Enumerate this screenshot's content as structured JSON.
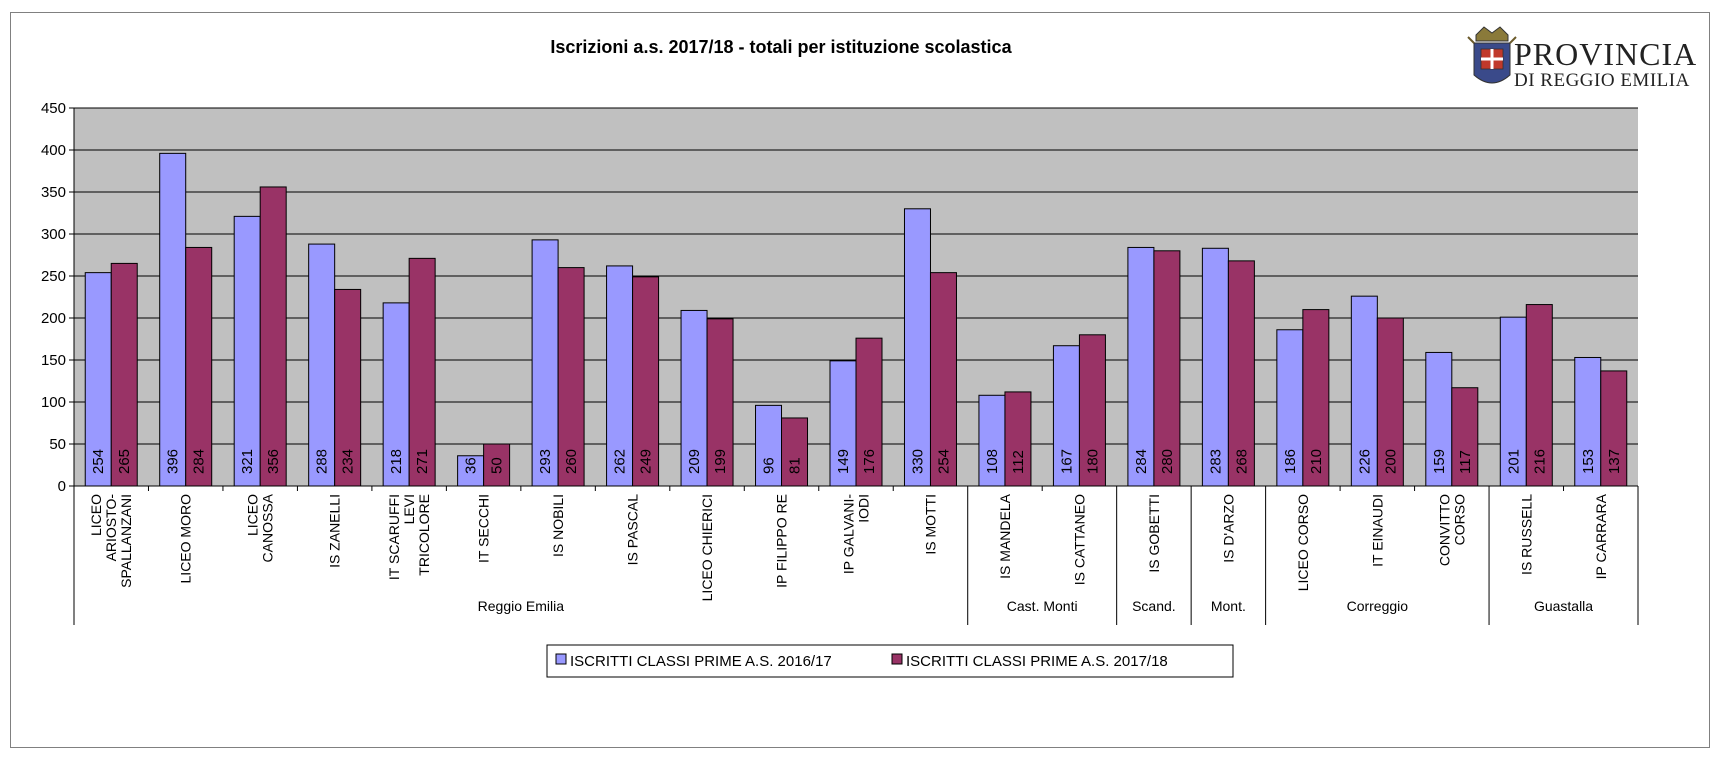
{
  "logo": {
    "line1": "PROVINCIA",
    "line2": "DI REGGIO EMILIA"
  },
  "colors": {
    "series1": "#9999ff",
    "series2": "#993366",
    "plot_bg": "#c0c0c0"
  },
  "chart_data": {
    "type": "bar",
    "title": "Iscrizioni a.s. 2017/18 - totali per istituzione scolastica",
    "xlabel": "",
    "ylabel": "",
    "ylim": [
      0,
      450
    ],
    "yticks": [
      0,
      50,
      100,
      150,
      200,
      250,
      300,
      350,
      400,
      450
    ],
    "grid": true,
    "legend_position": "bottom",
    "categories": [
      "LICEO ARIOSTO-SPALLANZANI",
      "LICEO MORO",
      "LICEO CANOSSA",
      "IS ZANELLI",
      "IT SCARUFFI LEVI TRICOLORE",
      "IT SECCHI",
      "IS NOBILI",
      "IS PASCAL",
      "LICEO CHIERICI",
      "IP FILIPPO RE",
      "IP GALVANI-IODI",
      "IS MOTTI",
      "IS MANDELA",
      "IS CATTANEO",
      "IS GOBETTI",
      "IS D'ARZO",
      "LICEO CORSO",
      "IT EINAUDI",
      "CONVITTO CORSO",
      "IS RUSSELL",
      "IP CARRARA"
    ],
    "category_lines": [
      [
        "LICEO",
        "ARIOSTO-",
        "SPALLANZANI"
      ],
      [
        "LICEO MORO"
      ],
      [
        "LICEO",
        "CANOSSA"
      ],
      [
        "IS ZANELLI"
      ],
      [
        "IT SCARUFFI",
        "LEVI",
        "TRICOLORE"
      ],
      [
        "IT SECCHI"
      ],
      [
        "IS NOBILI"
      ],
      [
        "IS PASCAL"
      ],
      [
        "LICEO CHIERICI"
      ],
      [
        "IP FILIPPO RE"
      ],
      [
        "IP GALVANI-",
        "IODI"
      ],
      [
        "IS MOTTI"
      ],
      [
        "IS MANDELA"
      ],
      [
        "IS CATTANEO"
      ],
      [
        "IS GOBETTI"
      ],
      [
        "IS D'ARZO"
      ],
      [
        "LICEO CORSO"
      ],
      [
        "IT EINAUDI"
      ],
      [
        "CONVITTO",
        "CORSO"
      ],
      [
        "IS RUSSELL"
      ],
      [
        "IP CARRARA"
      ]
    ],
    "groups": [
      {
        "name": "Reggio Emilia",
        "start": 0,
        "end": 11
      },
      {
        "name": "Cast. Monti",
        "start": 12,
        "end": 13
      },
      {
        "name": "Scand.",
        "start": 14,
        "end": 14
      },
      {
        "name": "Mont.",
        "start": 15,
        "end": 15
      },
      {
        "name": "Correggio",
        "start": 16,
        "end": 18
      },
      {
        "name": "Guastalla",
        "start": 19,
        "end": 20
      }
    ],
    "series": [
      {
        "name": "ISCRITTI CLASSI PRIME A.S. 2016/17",
        "color": "#9999ff",
        "values": [
          254,
          396,
          321,
          288,
          218,
          36,
          293,
          262,
          209,
          96,
          149,
          330,
          108,
          167,
          284,
          283,
          186,
          226,
          159,
          201,
          153
        ]
      },
      {
        "name": "ISCRITTI CLASSI PRIME A.S. 2017/18",
        "color": "#993366",
        "values": [
          265,
          284,
          356,
          234,
          271,
          50,
          260,
          249,
          199,
          81,
          176,
          254,
          112,
          180,
          280,
          268,
          210,
          200,
          117,
          216,
          137
        ]
      }
    ]
  }
}
